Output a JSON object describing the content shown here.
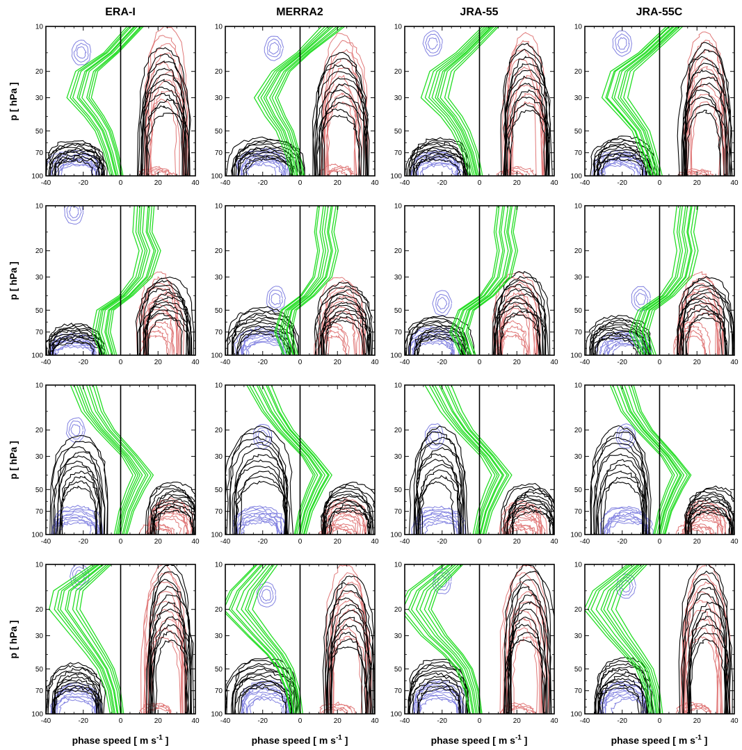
{
  "figure": {
    "column_titles": [
      "ERA-I",
      "MERRA2",
      "JRA-55",
      "JRA-55C"
    ],
    "ylabel_main": "p  [ hPa ]",
    "xlabel_prefix": "phase speed  [ m s",
    "xlabel_sup": "-1",
    "xlabel_suffix": " ]",
    "colors": {
      "wind_profiles": "#22dd22",
      "black_contours": "#000000",
      "eastward_contours": "#e07878",
      "westward_contours": "#8080e0"
    }
  },
  "chart_data": {
    "type": "contour",
    "layout": {
      "rows": 4,
      "columns": 4
    },
    "xlim": [
      -40,
      40
    ],
    "ylim": [
      100,
      10
    ],
    "y_scale": "log",
    "x_ticks": [
      -40,
      -20,
      0,
      20,
      40
    ],
    "y_ticks": [
      10,
      20,
      30,
      50,
      70,
      100
    ],
    "panels": [
      {
        "row": 1,
        "dataset": "ERA-I",
        "wind_profile_pts": [
          [
            100,
            -2
          ],
          [
            70,
            -5
          ],
          [
            50,
            -9
          ],
          [
            40,
            -14
          ],
          [
            30,
            -22
          ],
          [
            20,
            -18
          ],
          [
            15,
            -5
          ],
          [
            10,
            8
          ]
        ],
        "black_left": {
          "cx": -24,
          "top": 58,
          "halfwidth": 15
        },
        "black_right": {
          "cx": 24,
          "top": 14,
          "halfwidth": 13
        },
        "blue_left": {
          "cx": -24,
          "top": 68
        },
        "red_right": {
          "cx": 24,
          "top": 10
        },
        "blue_upper": {
          "cx": -21,
          "p": 15
        },
        "red_lower": {
          "cx": 20,
          "p": 88
        }
      },
      {
        "row": 1,
        "dataset": "MERRA2",
        "wind_profile_pts": [
          [
            100,
            -1
          ],
          [
            70,
            -4
          ],
          [
            50,
            -8
          ],
          [
            40,
            -13
          ],
          [
            30,
            -18
          ],
          [
            20,
            -10
          ],
          [
            15,
            2
          ],
          [
            10,
            18
          ]
        ],
        "black_left": {
          "cx": -18,
          "top": 56,
          "halfwidth": 18
        },
        "black_right": {
          "cx": 22,
          "top": 15,
          "halfwidth": 14
        },
        "blue_left": {
          "cx": -20,
          "top": 66
        },
        "red_right": {
          "cx": 23,
          "top": 11
        },
        "blue_upper": {
          "cx": -14,
          "p": 14
        },
        "red_lower": {
          "cx": 20,
          "p": 85
        }
      },
      {
        "row": 1,
        "dataset": "JRA-55",
        "wind_profile_pts": [
          [
            100,
            -2
          ],
          [
            70,
            -5
          ],
          [
            50,
            -10
          ],
          [
            40,
            -15
          ],
          [
            30,
            -24
          ],
          [
            20,
            -20
          ],
          [
            15,
            -8
          ],
          [
            10,
            6
          ]
        ],
        "black_left": {
          "cx": -22,
          "top": 56,
          "halfwidth": 16
        },
        "black_right": {
          "cx": 25,
          "top": 13,
          "halfwidth": 13
        },
        "blue_left": {
          "cx": -22,
          "top": 68
        },
        "red_right": {
          "cx": 24,
          "top": 11
        },
        "blue_upper": {
          "cx": -25,
          "p": 13
        },
        "red_lower": {
          "cx": 19,
          "p": 88
        }
      },
      {
        "row": 1,
        "dataset": "JRA-55C",
        "wind_profile_pts": [
          [
            100,
            -2
          ],
          [
            70,
            -6
          ],
          [
            50,
            -10
          ],
          [
            40,
            -16
          ],
          [
            30,
            -24
          ],
          [
            20,
            -20
          ],
          [
            15,
            -7
          ],
          [
            10,
            8
          ]
        ],
        "black_left": {
          "cx": -20,
          "top": 55,
          "halfwidth": 16
        },
        "black_right": {
          "cx": 24,
          "top": 13,
          "halfwidth": 13
        },
        "blue_left": {
          "cx": -21,
          "top": 68
        },
        "red_right": {
          "cx": 25,
          "top": 11
        },
        "blue_upper": {
          "cx": -20,
          "p": 13
        },
        "red_lower": {
          "cx": 20,
          "p": 90
        }
      },
      {
        "row": 2,
        "dataset": "ERA-I",
        "wind_profile_pts": [
          [
            100,
            -6
          ],
          [
            70,
            -10
          ],
          [
            50,
            -8
          ],
          [
            40,
            3
          ],
          [
            30,
            12
          ],
          [
            20,
            16
          ],
          [
            15,
            12
          ],
          [
            10,
            13
          ]
        ],
        "black_left": {
          "cx": -25,
          "top": 62,
          "halfwidth": 15
        },
        "black_right": {
          "cx": 24,
          "top": 30,
          "halfwidth": 14
        },
        "blue_left": {
          "cx": -25,
          "top": 72
        },
        "red_right": {
          "cx": 22,
          "top": 28
        },
        "blue_upper": {
          "cx": -25,
          "p": 11
        },
        "red_lower": {
          "cx": 20,
          "p": 60
        }
      },
      {
        "row": 2,
        "dataset": "MERRA2",
        "wind_profile_pts": [
          [
            100,
            -5
          ],
          [
            70,
            -9
          ],
          [
            50,
            -6
          ],
          [
            40,
            4
          ],
          [
            30,
            12
          ],
          [
            20,
            15
          ],
          [
            15,
            13
          ],
          [
            10,
            15
          ]
        ],
        "black_left": {
          "cx": -20,
          "top": 48,
          "halfwidth": 18
        },
        "black_right": {
          "cx": 24,
          "top": 33,
          "halfwidth": 14
        },
        "blue_left": {
          "cx": -20,
          "top": 65
        },
        "red_right": {
          "cx": 22,
          "top": 30
        },
        "blue_upper": {
          "cx": -13,
          "p": 42
        },
        "red_lower": {
          "cx": 18,
          "p": 60
        }
      },
      {
        "row": 2,
        "dataset": "JRA-55",
        "wind_profile_pts": [
          [
            100,
            -6
          ],
          [
            70,
            -11
          ],
          [
            50,
            -7
          ],
          [
            40,
            4
          ],
          [
            30,
            12
          ],
          [
            20,
            15
          ],
          [
            15,
            13
          ],
          [
            10,
            15
          ]
        ],
        "black_left": {
          "cx": -22,
          "top": 55,
          "halfwidth": 16
        },
        "black_right": {
          "cx": 22,
          "top": 28,
          "halfwidth": 14
        },
        "blue_left": {
          "cx": -24,
          "top": 65
        },
        "red_right": {
          "cx": 20,
          "top": 28
        },
        "blue_upper": {
          "cx": -20,
          "p": 45
        },
        "red_lower": {
          "cx": 18,
          "p": 60
        }
      },
      {
        "row": 2,
        "dataset": "JRA-55C",
        "wind_profile_pts": [
          [
            100,
            -6
          ],
          [
            70,
            -11
          ],
          [
            50,
            -7
          ],
          [
            40,
            4
          ],
          [
            30,
            12
          ],
          [
            20,
            15
          ],
          [
            15,
            13
          ],
          [
            10,
            15
          ]
        ],
        "black_left": {
          "cx": -22,
          "top": 55,
          "halfwidth": 16
        },
        "black_right": {
          "cx": 24,
          "top": 30,
          "halfwidth": 14
        },
        "blue_left": {
          "cx": -18,
          "top": 70
        },
        "red_right": {
          "cx": 22,
          "top": 28
        },
        "blue_upper": {
          "cx": -10,
          "p": 42
        },
        "red_lower": {
          "cx": 18,
          "p": 60
        }
      },
      {
        "row": 3,
        "dataset": "ERA-I",
        "wind_profile_pts": [
          [
            100,
            0
          ],
          [
            70,
            3
          ],
          [
            50,
            8
          ],
          [
            40,
            12
          ],
          [
            30,
            5
          ],
          [
            20,
            -8
          ],
          [
            15,
            -15
          ],
          [
            10,
            -20
          ]
        ],
        "black_left": {
          "cx": -22,
          "top": 22,
          "halfwidth": 14
        },
        "black_right": {
          "cx": 28,
          "top": 45,
          "halfwidth": 14
        },
        "blue_left": {
          "cx": -24,
          "top": 65
        },
        "red_right": {
          "cx": 26,
          "top": 58
        },
        "blue_upper": {
          "cx": -24,
          "p": 20
        },
        "red_lower": {
          "cx": 20,
          "p": 85
        }
      },
      {
        "row": 3,
        "dataset": "MERRA2",
        "wind_profile_pts": [
          [
            100,
            0
          ],
          [
            70,
            3
          ],
          [
            50,
            8
          ],
          [
            40,
            12
          ],
          [
            30,
            5
          ],
          [
            20,
            -8
          ],
          [
            15,
            -15
          ],
          [
            10,
            -22
          ]
        ],
        "black_left": {
          "cx": -22,
          "top": 19,
          "halfwidth": 16
        },
        "black_right": {
          "cx": 26,
          "top": 45,
          "halfwidth": 14
        },
        "blue_left": {
          "cx": -22,
          "top": 65
        },
        "red_right": {
          "cx": 24,
          "top": 58
        },
        "blue_upper": {
          "cx": -20,
          "p": 22
        },
        "red_lower": {
          "cx": 20,
          "p": 85
        }
      },
      {
        "row": 3,
        "dataset": "JRA-55",
        "wind_profile_pts": [
          [
            100,
            0
          ],
          [
            70,
            3
          ],
          [
            50,
            8
          ],
          [
            40,
            12
          ],
          [
            30,
            5
          ],
          [
            20,
            -8
          ],
          [
            15,
            -15
          ],
          [
            10,
            -22
          ]
        ],
        "black_left": {
          "cx": -22,
          "top": 19,
          "halfwidth": 14
        },
        "black_right": {
          "cx": 28,
          "top": 46,
          "halfwidth": 14
        },
        "blue_left": {
          "cx": -22,
          "top": 65
        },
        "red_right": {
          "cx": 24,
          "top": 60
        },
        "blue_upper": {
          "cx": -24,
          "p": 22
        },
        "red_lower": {
          "cx": 20,
          "p": 85
        }
      },
      {
        "row": 3,
        "dataset": "JRA-55C",
        "wind_profile_pts": [
          [
            100,
            0
          ],
          [
            70,
            3
          ],
          [
            50,
            8
          ],
          [
            40,
            12
          ],
          [
            30,
            5
          ],
          [
            20,
            -8
          ],
          [
            15,
            -15
          ],
          [
            10,
            -20
          ]
        ],
        "black_left": {
          "cx": -20,
          "top": 19,
          "halfwidth": 15
        },
        "black_right": {
          "cx": 28,
          "top": 48,
          "halfwidth": 14
        },
        "blue_left": {
          "cx": -18,
          "top": 65
        },
        "red_right": {
          "cx": 24,
          "top": 60
        },
        "blue_upper": {
          "cx": -18,
          "p": 22
        },
        "red_lower": {
          "cx": 20,
          "p": 85
        }
      },
      {
        "row": 4,
        "dataset": "ERA-I",
        "wind_profile_pts": [
          [
            100,
            -2
          ],
          [
            70,
            -4
          ],
          [
            50,
            -8
          ],
          [
            40,
            -13
          ],
          [
            30,
            -20
          ],
          [
            20,
            -30
          ],
          [
            15,
            -28
          ],
          [
            10,
            -10
          ]
        ],
        "black_left": {
          "cx": -24,
          "top": 46,
          "halfwidth": 15
        },
        "black_right": {
          "cx": 26,
          "top": 10,
          "halfwidth": 12
        },
        "blue_left": {
          "cx": -24,
          "top": 62
        },
        "red_right": {
          "cx": 24,
          "top": 10
        },
        "blue_upper": {
          "cx": -22,
          "p": 12
        },
        "red_lower": {
          "cx": 20,
          "p": 85
        }
      },
      {
        "row": 4,
        "dataset": "MERRA2",
        "wind_profile_pts": [
          [
            100,
            -2
          ],
          [
            70,
            -4
          ],
          [
            50,
            -8
          ],
          [
            40,
            -13
          ],
          [
            30,
            -22
          ],
          [
            20,
            -34
          ],
          [
            15,
            -30
          ],
          [
            10,
            -18
          ]
        ],
        "black_left": {
          "cx": -20,
          "top": 42,
          "halfwidth": 18
        },
        "black_right": {
          "cx": 26,
          "top": 12,
          "halfwidth": 12
        },
        "blue_left": {
          "cx": -18,
          "top": 60
        },
        "red_right": {
          "cx": 26,
          "top": 10
        },
        "blue_upper": {
          "cx": -18,
          "p": 16
        },
        "red_lower": {
          "cx": 20,
          "p": 85
        }
      },
      {
        "row": 4,
        "dataset": "JRA-55",
        "wind_profile_pts": [
          [
            100,
            -2
          ],
          [
            70,
            -4
          ],
          [
            50,
            -8
          ],
          [
            40,
            -14
          ],
          [
            30,
            -24
          ],
          [
            20,
            -34
          ],
          [
            15,
            -30
          ],
          [
            10,
            -14
          ]
        ],
        "black_left": {
          "cx": -22,
          "top": 43,
          "halfwidth": 16
        },
        "black_right": {
          "cx": 26,
          "top": 10,
          "halfwidth": 12
        },
        "blue_left": {
          "cx": -22,
          "top": 60
        },
        "red_right": {
          "cx": 24,
          "top": 10
        },
        "blue_upper": {
          "cx": -20,
          "p": 13
        },
        "red_lower": {
          "cx": 20,
          "p": 85
        }
      },
      {
        "row": 4,
        "dataset": "JRA-55C",
        "wind_profile_pts": [
          [
            100,
            -2
          ],
          [
            70,
            -4
          ],
          [
            50,
            -8
          ],
          [
            40,
            -14
          ],
          [
            30,
            -22
          ],
          [
            20,
            -32
          ],
          [
            15,
            -28
          ],
          [
            10,
            -12
          ]
        ],
        "black_left": {
          "cx": -20,
          "top": 42,
          "halfwidth": 15
        },
        "black_right": {
          "cx": 26,
          "top": 10,
          "halfwidth": 12
        },
        "blue_left": {
          "cx": -18,
          "top": 60
        },
        "red_right": {
          "cx": 24,
          "top": 10
        },
        "blue_upper": {
          "cx": -18,
          "p": 14
        },
        "red_lower": {
          "cx": 20,
          "p": 85
        }
      }
    ]
  }
}
